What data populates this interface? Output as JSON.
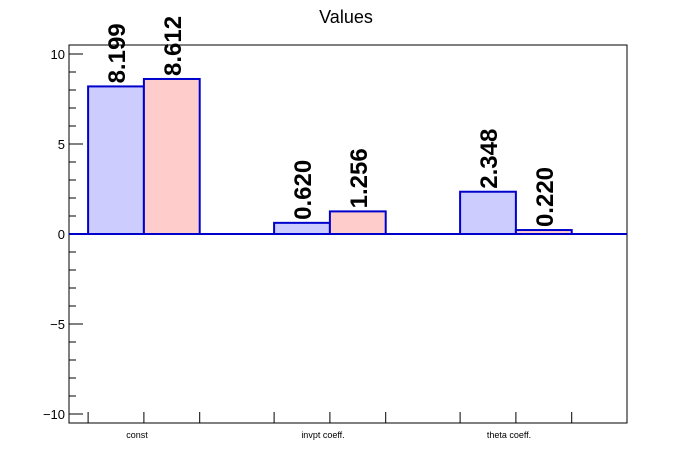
{
  "chart_data": {
    "type": "bar",
    "title": "Values",
    "categories": [
      "const",
      "invpt coeff.",
      "theta coeff."
    ],
    "series": [
      {
        "values": [
          8.199,
          0.62,
          2.348
        ],
        "labels": [
          "8.199",
          "0.620",
          "2.348"
        ],
        "color": "#ccccff"
      },
      {
        "values": [
          8.612,
          1.256,
          0.22
        ],
        "labels": [
          "8.612",
          "1.256",
          "0.220"
        ],
        "color": "#ffcccc"
      }
    ],
    "xlabel": "",
    "ylabel": "",
    "ylim": [
      -10.5,
      10.5
    ],
    "yticks": [
      -10,
      -5,
      0,
      5,
      10
    ],
    "ytick_labels": [
      "−10",
      "−5",
      "0",
      "5",
      "10"
    ],
    "grid": false,
    "outline_color": "#0000cc"
  }
}
